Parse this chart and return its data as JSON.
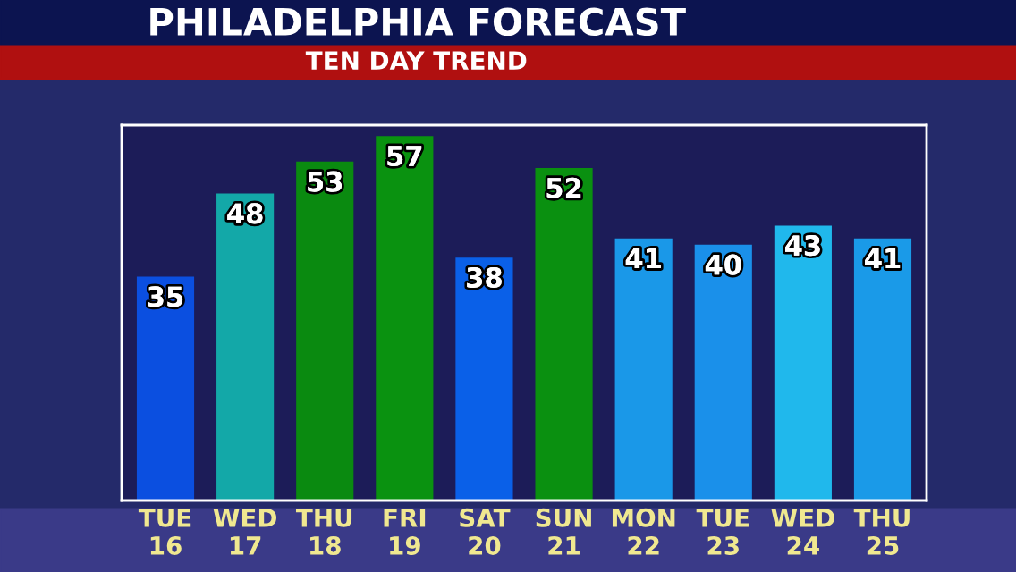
{
  "chart_data": {
    "type": "bar",
    "title": "PHILADELPHIA FORECAST",
    "subtitle": "TEN DAY TREND",
    "categories": [
      "TUE\n16",
      "WED\n17",
      "THU\n18",
      "FRI\n19",
      "SAT\n20",
      "SUN\n21",
      "MON\n22",
      "TUE\n23",
      "WED\n24",
      "THU\n25"
    ],
    "values": [
      35,
      48,
      53,
      57,
      38,
      52,
      41,
      40,
      43,
      41
    ],
    "colors": [
      "#0b4fe0",
      "#13a8a8",
      "#0a8a10",
      "#0a9210",
      "#0a60e8",
      "#0a9010",
      "#1a98e8",
      "#1a90ea",
      "#20b8ec",
      "#1a9ae8"
    ],
    "data_labels": true,
    "grid": false,
    "legend": false
  }
}
